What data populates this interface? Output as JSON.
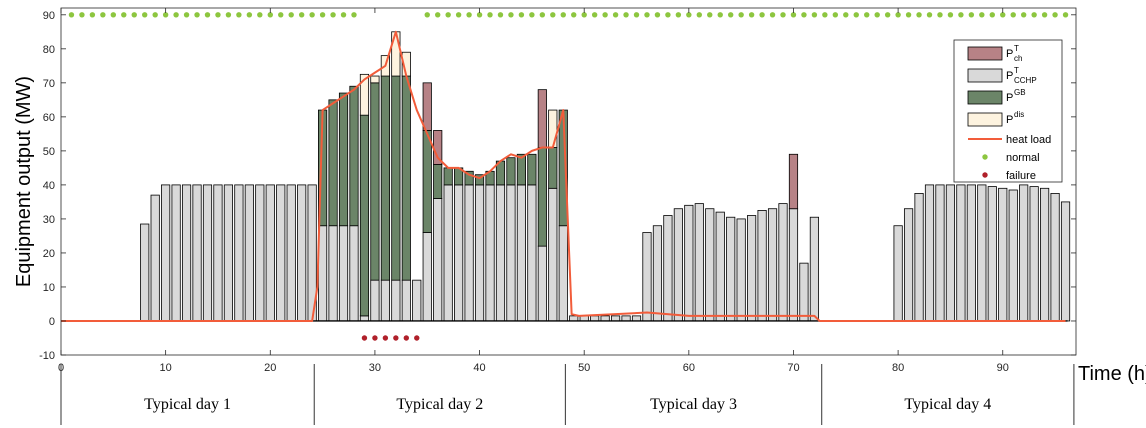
{
  "chart_data": {
    "type": "bar",
    "stacked": true,
    "ylabel": "Equipment output (MW)",
    "xlabel": "Time (h)",
    "xlim": [
      0,
      97
    ],
    "ylim": [
      -10,
      92
    ],
    "x_ticks": [
      0,
      10,
      20,
      30,
      40,
      50,
      60,
      70,
      80,
      90
    ],
    "y_ticks": [
      -10,
      0,
      10,
      20,
      30,
      40,
      50,
      60,
      70,
      80,
      90
    ],
    "grid": false,
    "legend_position": "top-right",
    "colors": {
      "P_ch_T": "#b78286",
      "P_CCHP_T": "#d9d9d9",
      "P_GB": "#6b8568",
      "P_dis": "#fdf3df",
      "heat_load": "#f25c3a",
      "normal": "#8dc63f",
      "failure": "#b0202a"
    },
    "legend": [
      {
        "key": "P_ch_T",
        "main": "P",
        "sup": "T",
        "sub": "ch",
        "kind": "box"
      },
      {
        "key": "P_CCHP_T",
        "main": "P",
        "sup": "T",
        "sub": "CCHP",
        "kind": "box"
      },
      {
        "key": "P_GB",
        "main": "P",
        "sup": "GB",
        "sub": "",
        "kind": "box"
      },
      {
        "key": "P_dis",
        "main": "P",
        "sup": "dis",
        "sub": "",
        "kind": "box"
      },
      {
        "key": "heat_load",
        "main": "heat load",
        "sup": "",
        "sub": "",
        "kind": "line"
      },
      {
        "key": "normal",
        "main": "normal",
        "sup": "",
        "sub": "",
        "kind": "dot"
      },
      {
        "key": "failure",
        "main": "failure",
        "sup": "",
        "sub": "",
        "kind": "dot"
      }
    ],
    "days": [
      "Typical day 1",
      "Typical day 2",
      "Typical day 3",
      "Typical day 4"
    ],
    "hours": [
      1,
      2,
      3,
      4,
      5,
      6,
      7,
      8,
      9,
      10,
      11,
      12,
      13,
      14,
      15,
      16,
      17,
      18,
      19,
      20,
      21,
      22,
      23,
      24,
      25,
      26,
      27,
      28,
      29,
      30,
      31,
      32,
      33,
      34,
      35,
      36,
      37,
      38,
      39,
      40,
      41,
      42,
      43,
      44,
      45,
      46,
      47,
      48,
      49,
      50,
      51,
      52,
      53,
      54,
      55,
      56,
      57,
      58,
      59,
      60,
      61,
      62,
      63,
      64,
      65,
      66,
      67,
      68,
      69,
      70,
      71,
      72,
      73,
      74,
      75,
      76,
      77,
      78,
      79,
      80,
      81,
      82,
      83,
      84,
      85,
      86,
      87,
      88,
      89,
      90,
      91,
      92,
      93,
      94,
      95,
      96
    ],
    "series": [
      {
        "key": "P_CCHP_T",
        "name": "P^T_CCHP",
        "values": [
          0,
          0,
          0,
          0,
          0,
          0,
          0,
          28.5,
          37,
          40,
          40,
          40,
          40,
          40,
          40,
          40,
          40,
          40,
          40,
          40,
          40,
          40,
          40,
          40,
          28,
          28,
          28,
          28,
          1.5,
          12,
          12,
          12,
          12,
          12,
          26,
          36,
          40,
          40,
          40,
          40,
          40,
          40,
          40,
          40,
          40,
          22,
          39,
          28,
          1.5,
          1.5,
          1.5,
          1.5,
          1.5,
          1.5,
          1.5,
          26,
          28,
          31,
          33,
          34,
          34.5,
          33,
          32,
          30.5,
          30,
          31,
          32.5,
          33,
          34.5,
          33,
          17,
          30.5,
          0,
          0,
          0,
          0,
          0,
          0,
          0,
          28,
          33,
          37.5,
          40,
          40,
          40,
          40,
          40,
          40,
          39.5,
          39,
          38.5,
          40,
          39.5,
          39,
          37.5,
          35
        ]
      },
      {
        "key": "P_GB",
        "name": "P^GB",
        "values": [
          0,
          0,
          0,
          0,
          0,
          0,
          0,
          0,
          0,
          0,
          0,
          0,
          0,
          0,
          0,
          0,
          0,
          0,
          0,
          0,
          0,
          0,
          0,
          0,
          34,
          37,
          39,
          41,
          59,
          58,
          60,
          60,
          60,
          0,
          30,
          10,
          5,
          5,
          4,
          3,
          4,
          7,
          8,
          9,
          9,
          29,
          12,
          34,
          0,
          0,
          0,
          0,
          0,
          0,
          0,
          0,
          0,
          0,
          0,
          0,
          0,
          0,
          0,
          0,
          0,
          0,
          0,
          0,
          0,
          0,
          0,
          0,
          0,
          0,
          0,
          0,
          0,
          0,
          0,
          0,
          0,
          0,
          0,
          0,
          0,
          0,
          0,
          0,
          0,
          0,
          0,
          0,
          0,
          0,
          0,
          0
        ]
      },
      {
        "key": "P_dis",
        "name": "P^dis",
        "values": [
          0,
          0,
          0,
          0,
          0,
          0,
          0,
          0,
          0,
          0,
          0,
          0,
          0,
          0,
          0,
          0,
          0,
          0,
          0,
          0,
          0,
          0,
          0,
          0,
          0,
          0,
          0,
          0,
          12,
          2,
          6,
          13,
          7,
          0,
          0,
          0,
          0,
          0,
          0,
          0,
          0,
          0,
          0,
          0,
          0,
          0,
          11,
          0,
          0,
          0,
          0,
          0,
          0,
          0,
          0,
          0,
          0,
          0,
          0,
          0,
          0,
          0,
          0,
          0,
          0,
          0,
          0,
          0,
          0,
          0,
          0,
          0,
          0,
          0,
          0,
          0,
          0,
          0,
          0,
          0,
          0,
          0,
          0,
          0,
          0,
          0,
          0,
          0,
          0,
          0,
          0,
          0,
          0,
          0,
          0,
          0
        ]
      },
      {
        "key": "P_ch_T",
        "name": "P^T_ch",
        "values": [
          0,
          0,
          0,
          0,
          0,
          0,
          0,
          0,
          0,
          0,
          0,
          0,
          0,
          0,
          0,
          0,
          0,
          0,
          0,
          0,
          0,
          0,
          0,
          0,
          0,
          0,
          0,
          0,
          0,
          0,
          0,
          0,
          0,
          0,
          14,
          10,
          0,
          0,
          0,
          0,
          0,
          0,
          0,
          0,
          0,
          17,
          0,
          0,
          0,
          0,
          0,
          0,
          0,
          0,
          0,
          0,
          0,
          0,
          0,
          0,
          0,
          0,
          0,
          0,
          0,
          0,
          0,
          0,
          0,
          16,
          0,
          0,
          0,
          0,
          0,
          0,
          0,
          0,
          0,
          0,
          0,
          0,
          0,
          0,
          0,
          0,
          0,
          0,
          0,
          0,
          0,
          0,
          0,
          0,
          0,
          0
        ]
      }
    ],
    "heat_load": {
      "name": "heat load",
      "x": [
        0,
        24,
        24.5,
        25,
        26,
        27,
        28,
        29,
        30,
        31,
        32,
        33,
        34,
        35,
        36,
        37,
        38,
        39,
        40,
        41,
        42,
        43,
        44,
        45,
        46,
        47,
        48,
        48.8,
        49.5,
        53,
        56,
        60,
        72,
        72.5,
        96
      ],
      "y": [
        0,
        0,
        10,
        62,
        64,
        66,
        68,
        71,
        73,
        75,
        85,
        72,
        62,
        55,
        48,
        45,
        45,
        43,
        42,
        44,
        47,
        49,
        48,
        50,
        51,
        51,
        62,
        2,
        1.5,
        2,
        2.5,
        1.5,
        1.5,
        0,
        0
      ]
    },
    "normal_hours": [
      1,
      2,
      3,
      4,
      5,
      6,
      7,
      8,
      9,
      10,
      11,
      12,
      13,
      14,
      15,
      16,
      17,
      18,
      19,
      20,
      21,
      22,
      23,
      24,
      25,
      26,
      27,
      28,
      35,
      36,
      37,
      38,
      39,
      40,
      41,
      42,
      43,
      44,
      45,
      46,
      47,
      48,
      49,
      50,
      51,
      52,
      53,
      54,
      55,
      56,
      57,
      58,
      59,
      60,
      61,
      62,
      63,
      64,
      65,
      66,
      67,
      68,
      69,
      70,
      71,
      72,
      73,
      74,
      75,
      76,
      77,
      78,
      79,
      80,
      81,
      82,
      83,
      84,
      85,
      86,
      87,
      88,
      89,
      90,
      91,
      92,
      93,
      94,
      95,
      96
    ],
    "failure_hours": [
      29,
      30,
      31,
      32,
      33,
      34
    ],
    "status_y_normal": 90,
    "status_y_failure": -5
  }
}
